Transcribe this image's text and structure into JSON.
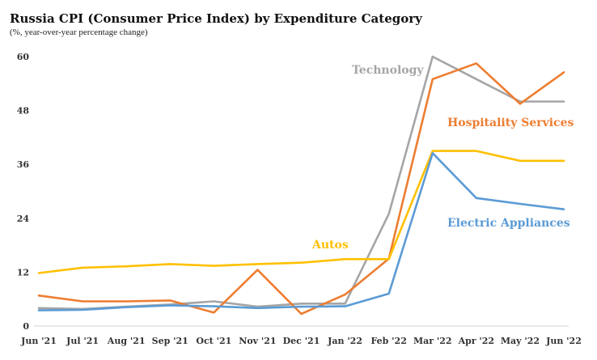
{
  "chart_data": {
    "type": "line",
    "title": "Russia CPI (Consumer Price Index) by Expenditure Category",
    "subtitle": "(%, year-over-year percentage change)",
    "categories": [
      "Jun '21",
      "Jul '21",
      "Aug '21",
      "Sep '21",
      "Oct '21",
      "Nov '21",
      "Dec '21",
      "Jan '22",
      "Feb '22",
      "Mar '22",
      "Apr '22",
      "May '22",
      "Jun '22"
    ],
    "y_ticks": [
      "0",
      "12",
      "24",
      "36",
      "48",
      "60"
    ],
    "ylim": [
      0,
      60
    ],
    "grid": false,
    "series": [
      {
        "name": "Technology",
        "color": "#a5a5a5",
        "values": [
          4.0,
          3.8,
          4.3,
          4.8,
          5.5,
          4.3,
          5.0,
          5.0,
          25.0,
          60.0,
          55.0,
          50.0,
          50.0
        ]
      },
      {
        "name": "Hospitality Services",
        "color": "#ed7d31",
        "values": [
          6.8,
          5.5,
          5.5,
          5.7,
          3.0,
          12.5,
          2.7,
          7.0,
          15.0,
          55.0,
          58.5,
          49.5,
          56.5
        ]
      },
      {
        "name": "Autos",
        "color": "#ffc000",
        "values": [
          11.8,
          13.0,
          13.3,
          13.8,
          13.4,
          13.8,
          14.1,
          14.9,
          14.9,
          39.0,
          39.0,
          36.8,
          36.8
        ]
      },
      {
        "name": "Electric Appliances",
        "color": "#5b9bd5",
        "values": [
          3.5,
          3.6,
          4.2,
          4.6,
          4.4,
          4.0,
          4.3,
          4.4,
          7.2,
          38.5,
          28.5,
          27.2,
          26.0
        ]
      }
    ]
  }
}
